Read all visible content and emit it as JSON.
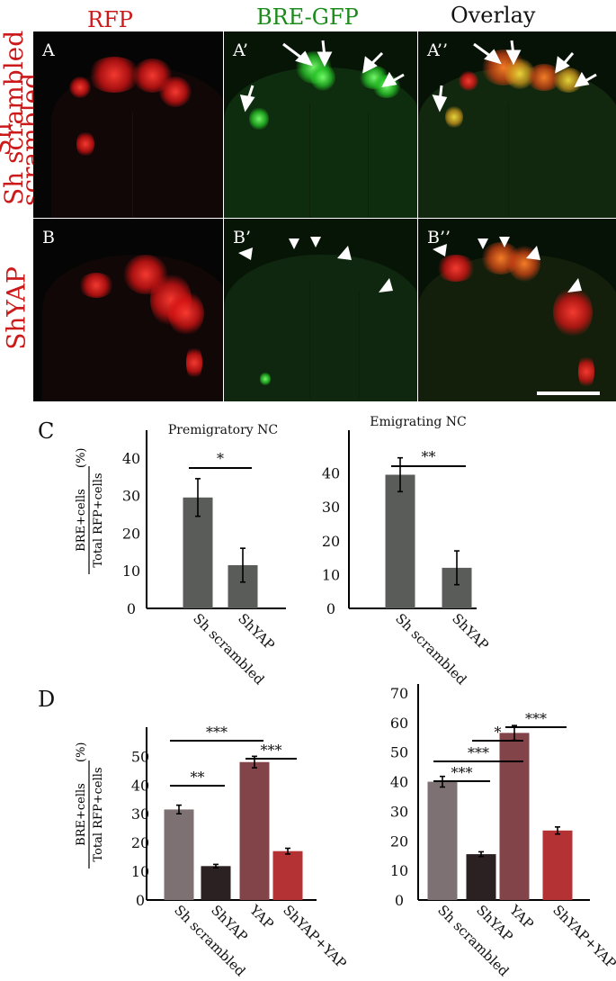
{
  "column_titles": {
    "rfp": "RFP",
    "bre_gfp": "BRE-GFP",
    "overlay": "Overlay"
  },
  "row_titles": {
    "row1": "Sh scrambled",
    "row2": "ShYAP"
  },
  "panel_labels": {
    "a": "A",
    "a1": "A’",
    "a2": "A’’",
    "b": "B",
    "b1": "B’",
    "b2": "B’’"
  },
  "section_labels": {
    "c": "C",
    "d": "D"
  },
  "colors": {
    "rfp_title": "#cc1a1a",
    "gfp_title": "#1a8a1a",
    "row_title": "#cc1a1a",
    "bar_dark_gray": "#5a5c5a",
    "bar_mauve": "#7d7173",
    "bar_black": "#2b2022",
    "bar_maroon": "#834449",
    "bar_red": "#b43134"
  },
  "chart_data": [
    {
      "type": "bar",
      "title": "Premigratory NC",
      "ylabel": "BRE+cells / Total RFP+cells (%)",
      "ylabel_parts": {
        "numerator": "BRE+cells",
        "denominator": "Total RFP+cells",
        "unit": "(%)"
      },
      "categories": [
        "Sh scrambled",
        "ShYAP"
      ],
      "values": [
        29.5,
        11.5
      ],
      "errors": [
        5,
        4.5
      ],
      "yticks": [
        0,
        10,
        20,
        30,
        40
      ],
      "ylim": [
        0,
        45
      ],
      "significance": [
        {
          "pair": [
            0,
            1
          ],
          "label": "*"
        }
      ]
    },
    {
      "type": "bar",
      "title": "Emigrating NC",
      "categories": [
        "Sh scrambled",
        "ShYAP"
      ],
      "values": [
        39.5,
        12
      ],
      "errors": [
        5,
        5
      ],
      "yticks": [
        0,
        10,
        20,
        30,
        40
      ],
      "ylim": [
        0,
        50
      ],
      "significance": [
        {
          "pair": [
            0,
            1
          ],
          "label": "**"
        }
      ]
    },
    {
      "type": "bar",
      "ylabel": "BRE+cells / Total RFP+cells (%)",
      "ylabel_parts": {
        "numerator": "BRE+cells",
        "denominator": "Total RFP+cells",
        "unit": "(%)"
      },
      "categories": [
        "Sh scrambled",
        "ShYAP",
        "YAP",
        "ShYAP+YAP"
      ],
      "values": [
        31.5,
        11.8,
        48,
        17
      ],
      "errors": [
        1.5,
        0.6,
        2,
        1
      ],
      "yticks": [
        0,
        10,
        20,
        30,
        40,
        50
      ],
      "ylim": [
        0,
        57
      ],
      "significance": [
        {
          "pair": [
            0,
            1
          ],
          "label": "**"
        },
        {
          "pair": [
            0,
            2
          ],
          "label": "***"
        },
        {
          "pair": [
            2,
            3
          ],
          "label": "***"
        }
      ]
    },
    {
      "type": "bar",
      "categories": [
        "Sh scrambled",
        "ShYAP",
        "YAP",
        "ShYAP+YAP"
      ],
      "values": [
        40,
        15.5,
        56.5,
        23.5
      ],
      "errors": [
        1.8,
        0.8,
        2.5,
        1.2
      ],
      "yticks": [
        0,
        10,
        20,
        30,
        40,
        50,
        60,
        70
      ],
      "ylim": [
        0,
        70
      ],
      "significance": [
        {
          "pair": [
            0,
            1
          ],
          "label": "***"
        },
        {
          "pair": [
            0,
            2
          ],
          "label": "***"
        },
        {
          "pair": [
            1,
            2
          ],
          "label": "*"
        },
        {
          "pair": [
            2,
            3
          ],
          "label": "***"
        }
      ]
    }
  ]
}
